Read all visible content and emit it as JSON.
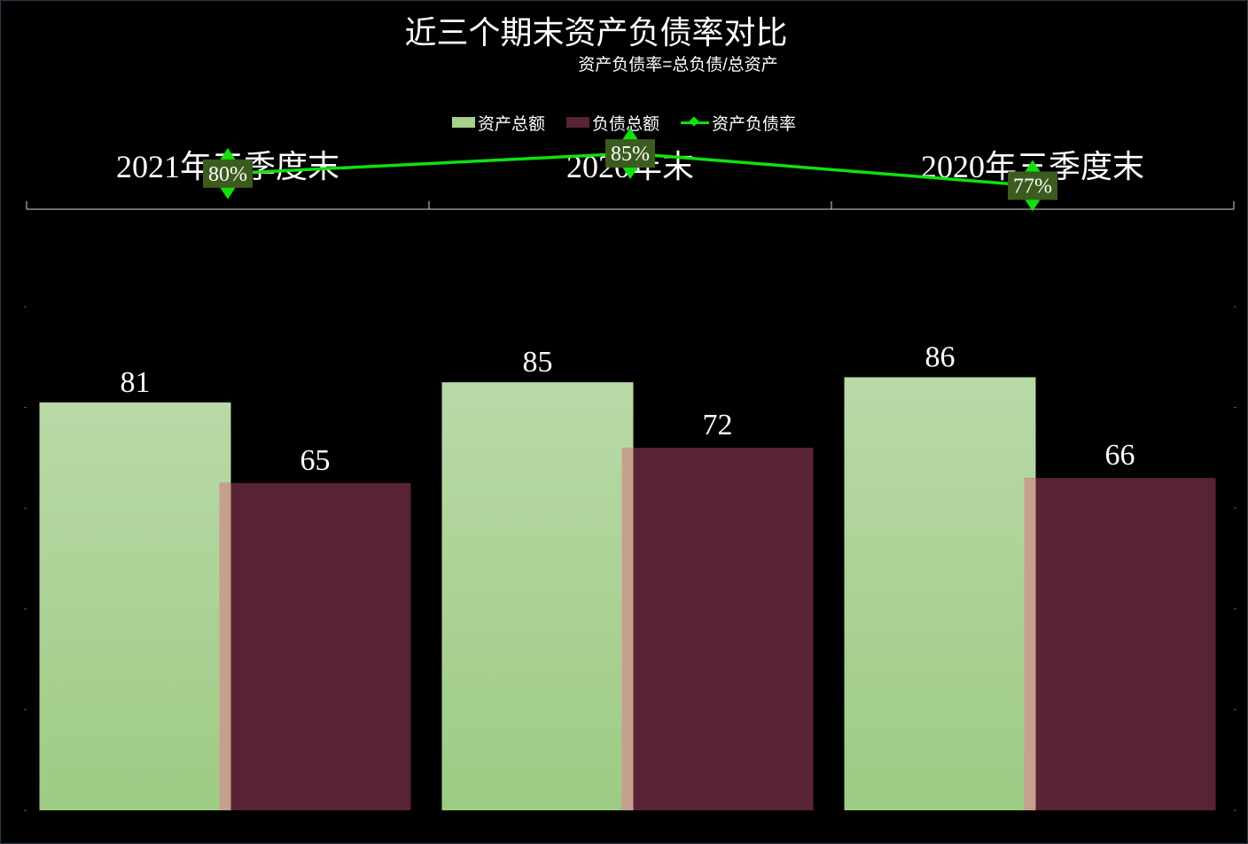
{
  "chart_data": {
    "type": "bar",
    "title": "近三个期末资产负债率对比",
    "subtitle": "资产负债率=总负债/总资产",
    "categories": [
      "2021年三季度末",
      "2020年末",
      "2020年三季度末"
    ],
    "series": [
      {
        "name": "资产总额",
        "type": "bar",
        "values": [
          81,
          85,
          86
        ],
        "color": "#a8d08d"
      },
      {
        "name": "负债总额",
        "type": "bar",
        "values": [
          65,
          72,
          66
        ],
        "color": "#582334"
      },
      {
        "name": "资产负债率",
        "type": "line",
        "values": [
          80,
          85,
          77
        ],
        "labels": [
          "80%",
          "85%",
          "77%"
        ],
        "color": "#10e010"
      }
    ],
    "ylim": [
      0,
      100
    ],
    "category_axis_position": "top",
    "legend_position": "top",
    "grid": false
  }
}
